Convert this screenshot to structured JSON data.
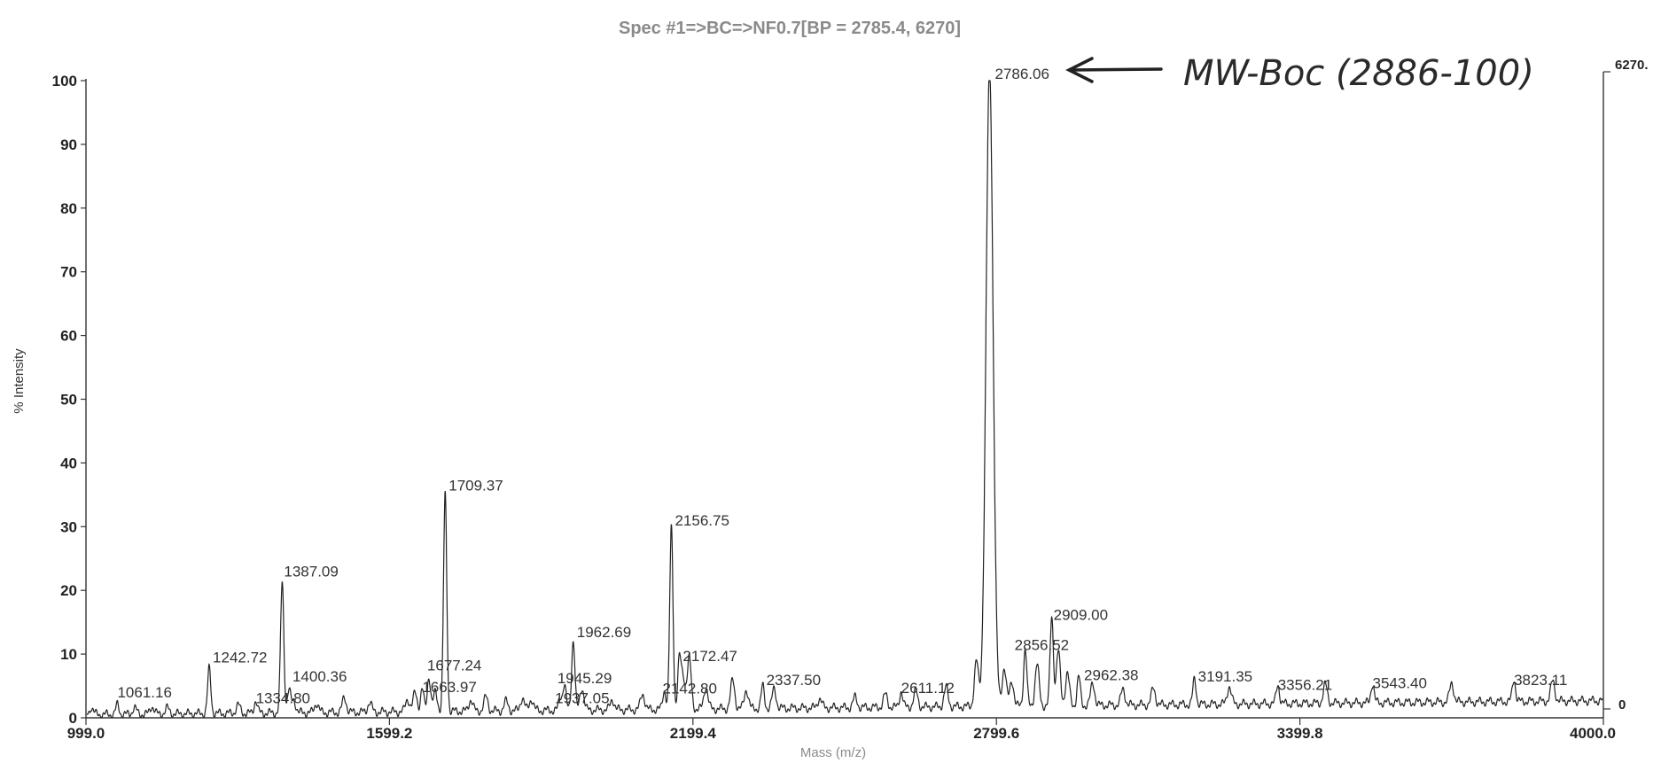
{
  "chart_data": {
    "type": "line",
    "title": "Spec #1=>BC=>NF0.7[BP = 2785.4, 6270]",
    "xlabel": "Mass (m/z)",
    "ylabel": "% Intensity",
    "xlim": [
      999.0,
      4000.0
    ],
    "ylim": [
      0,
      100
    ],
    "x_ticks": [
      "999.0",
      "1599.2",
      "2199.4",
      "2799.6",
      "3399.8",
      "4000.0"
    ],
    "y_ticks": [
      "0",
      "10",
      "20",
      "30",
      "40",
      "50",
      "60",
      "70",
      "80",
      "90",
      "100"
    ],
    "right_axis_labels": {
      "top": "6270.",
      "bottom": "0"
    },
    "grid": false,
    "peaks": [
      {
        "mz": 1061.16,
        "intensity": 1.5,
        "label": "1061.16"
      },
      {
        "mz": 1242.72,
        "intensity": 7.0,
        "label": "1242.72"
      },
      {
        "mz": 1334.8,
        "intensity": 2.0,
        "label": "1334.80"
      },
      {
        "mz": 1387.09,
        "intensity": 20.5,
        "label": "1387.09"
      },
      {
        "mz": 1400.36,
        "intensity": 3.5,
        "label": "1400.36"
      },
      {
        "mz": 1663.97,
        "intensity": 3.5,
        "label": "1663.97"
      },
      {
        "mz": 1677.24,
        "intensity": 5.5,
        "label": "1677.24"
      },
      {
        "mz": 1709.37,
        "intensity": 34.0,
        "label": "1709.37"
      },
      {
        "mz": 1937.05,
        "intensity": 2.0,
        "label": "1937.05"
      },
      {
        "mz": 1945.29,
        "intensity": 4.0,
        "label": "1945.29"
      },
      {
        "mz": 1962.69,
        "intensity": 11.0,
        "label": "1962.69"
      },
      {
        "mz": 2142.8,
        "intensity": 3.0,
        "label": "2142.80"
      },
      {
        "mz": 2156.75,
        "intensity": 28.5,
        "label": "2156.75"
      },
      {
        "mz": 2172.47,
        "intensity": 7.5,
        "label": "2172.47"
      },
      {
        "mz": 2337.5,
        "intensity": 3.5,
        "label": "2337.50"
      },
      {
        "mz": 2611.12,
        "intensity": 2.5,
        "label": "2611.12"
      },
      {
        "mz": 2786.06,
        "intensity": 100.0,
        "label": "2786.06"
      },
      {
        "mz": 2856.52,
        "intensity": 9.0,
        "label": "2856.52"
      },
      {
        "mz": 2909.0,
        "intensity": 14.0,
        "label": "2909.00"
      },
      {
        "mz": 2962.38,
        "intensity": 4.5,
        "label": "2962.38"
      },
      {
        "mz": 3191.35,
        "intensity": 4.0,
        "label": "3191.35"
      },
      {
        "mz": 3356.21,
        "intensity": 3.0,
        "label": "3356.21"
      },
      {
        "mz": 3543.4,
        "intensity": 3.0,
        "label": "3543.40"
      },
      {
        "mz": 3823.11,
        "intensity": 3.5,
        "label": "3823.11"
      }
    ],
    "minor_peaks": [
      [
        1010,
        1.0
      ],
      [
        1095,
        1.0
      ],
      [
        1130,
        1.2
      ],
      [
        1160,
        0.9
      ],
      [
        1300,
        1.3
      ],
      [
        1410,
        2.0
      ],
      [
        1455,
        1.5
      ],
      [
        1510,
        2.3
      ],
      [
        1560,
        1.5
      ],
      [
        1635,
        2.0
      ],
      [
        1650,
        3.0
      ],
      [
        1690,
        3.0
      ],
      [
        1760,
        1.8
      ],
      [
        1790,
        2.2
      ],
      [
        1830,
        1.5
      ],
      [
        1862,
        2.0
      ],
      [
        1880,
        1.8
      ],
      [
        1980,
        3.5
      ],
      [
        2040,
        1.6
      ],
      [
        2100,
        2.5
      ],
      [
        2180,
        5.0
      ],
      [
        2192,
        8.0
      ],
      [
        2225,
        3.5
      ],
      [
        2278,
        4.5
      ],
      [
        2305,
        3.0
      ],
      [
        2360,
        3.0
      ],
      [
        2450,
        1.5
      ],
      [
        2520,
        1.6
      ],
      [
        2580,
        2.0
      ],
      [
        2640,
        2.5
      ],
      [
        2700,
        3.0
      ],
      [
        2760,
        7.0
      ],
      [
        2815,
        6.0
      ],
      [
        2830,
        4.0
      ],
      [
        2880,
        6.5
      ],
      [
        2922,
        8.5
      ],
      [
        2940,
        5.0
      ],
      [
        2990,
        3.5
      ],
      [
        3050,
        2.5
      ],
      [
        3110,
        2.6
      ],
      [
        3260,
        2.8
      ],
      [
        3450,
        2.9
      ],
      [
        3700,
        3.0
      ],
      [
        3900,
        3.2
      ]
    ],
    "annotation": {
      "text": "MW-Boc (2886-100)",
      "points_to": "2786.06"
    }
  }
}
